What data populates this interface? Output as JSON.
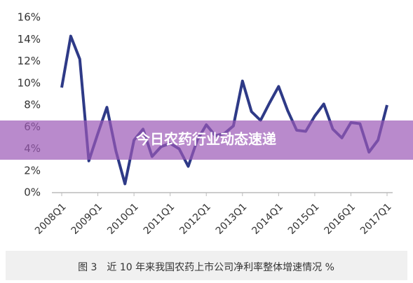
{
  "chart_data": {
    "type": "line",
    "title": "图 3　近 10 年来我国农药上市公司净利率整体增速情况 %",
    "categories": [
      "2008Q1",
      null,
      null,
      null,
      "2009Q1",
      null,
      null,
      null,
      "2010Q1",
      null,
      null,
      null,
      "2011Q1",
      null,
      null,
      null,
      "2012Q1",
      null,
      null,
      null,
      "2013Q1",
      null,
      null,
      null,
      "2014Q1",
      null,
      null,
      null,
      "2015Q1",
      null,
      null,
      null,
      "2016Q1",
      null,
      null,
      null,
      "2017Q1"
    ],
    "series": [
      {
        "color": "#2e3a87",
        "values": [
          9.6,
          14.3,
          12.2,
          2.9,
          5.4,
          7.8,
          3.8,
          0.8,
          4.8,
          5.8,
          3.3,
          4.2,
          4.5,
          4.0,
          2.4,
          4.8,
          6.2,
          5.2,
          5.4,
          6.1,
          10.2,
          7.4,
          6.6,
          8.2,
          9.7,
          7.5,
          5.7,
          5.6,
          7.0,
          8.1,
          5.8,
          5.0,
          6.4,
          6.3,
          3.7,
          4.8,
          8.0
        ]
      }
    ],
    "ylim": [
      0,
      16
    ],
    "yticks": [
      {
        "value": 0,
        "label": "0%"
      },
      {
        "value": 2,
        "label": "2%"
      },
      {
        "value": 4,
        "label": "4%"
      },
      {
        "value": 6,
        "label": "6%"
      },
      {
        "value": 8,
        "label": "8%"
      },
      {
        "value": 10,
        "label": "10%"
      },
      {
        "value": 12,
        "label": "12%"
      },
      {
        "value": 14,
        "label": "14%"
      },
      {
        "value": 16,
        "label": "16%"
      }
    ],
    "grid": false
  },
  "banner": "今日农药行业动态速递"
}
